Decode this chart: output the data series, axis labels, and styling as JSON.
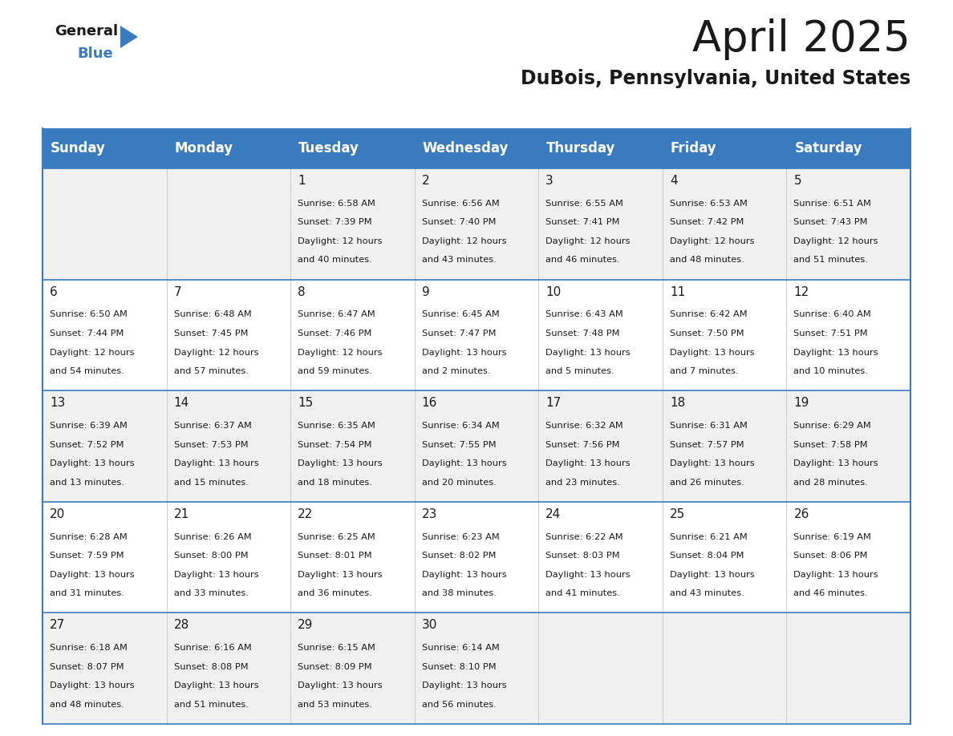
{
  "title": "April 2025",
  "subtitle": "DuBois, Pennsylvania, United States",
  "header_color": "#3a7bbf",
  "header_text_color": "#ffffff",
  "bg_color": "#ffffff",
  "row_odd_color": "#f0f0f0",
  "row_even_color": "#ffffff",
  "border_color": "#3a7bbf",
  "sep_color": "#cccccc",
  "day_headers": [
    "Sunday",
    "Monday",
    "Tuesday",
    "Wednesday",
    "Thursday",
    "Friday",
    "Saturday"
  ],
  "title_fontsize": 38,
  "subtitle_fontsize": 17,
  "header_fontsize": 12,
  "cell_fontsize": 8.2,
  "day_num_fontsize": 11,
  "logo_general_color": "#1a1a1a",
  "logo_blue_color": "#3a7bbf",
  "logo_triangle_color": "#3a7bbf",
  "days": [
    {
      "date": 1,
      "col": 2,
      "row": 0,
      "sunrise": "6:58 AM",
      "sunset": "7:39 PM",
      "daylight": "12 hours",
      "daylight2": "and 40 minutes."
    },
    {
      "date": 2,
      "col": 3,
      "row": 0,
      "sunrise": "6:56 AM",
      "sunset": "7:40 PM",
      "daylight": "12 hours",
      "daylight2": "and 43 minutes."
    },
    {
      "date": 3,
      "col": 4,
      "row": 0,
      "sunrise": "6:55 AM",
      "sunset": "7:41 PM",
      "daylight": "12 hours",
      "daylight2": "and 46 minutes."
    },
    {
      "date": 4,
      "col": 5,
      "row": 0,
      "sunrise": "6:53 AM",
      "sunset": "7:42 PM",
      "daylight": "12 hours",
      "daylight2": "and 48 minutes."
    },
    {
      "date": 5,
      "col": 6,
      "row": 0,
      "sunrise": "6:51 AM",
      "sunset": "7:43 PM",
      "daylight": "12 hours",
      "daylight2": "and 51 minutes."
    },
    {
      "date": 6,
      "col": 0,
      "row": 1,
      "sunrise": "6:50 AM",
      "sunset": "7:44 PM",
      "daylight": "12 hours",
      "daylight2": "and 54 minutes."
    },
    {
      "date": 7,
      "col": 1,
      "row": 1,
      "sunrise": "6:48 AM",
      "sunset": "7:45 PM",
      "daylight": "12 hours",
      "daylight2": "and 57 minutes."
    },
    {
      "date": 8,
      "col": 2,
      "row": 1,
      "sunrise": "6:47 AM",
      "sunset": "7:46 PM",
      "daylight": "12 hours",
      "daylight2": "and 59 minutes."
    },
    {
      "date": 9,
      "col": 3,
      "row": 1,
      "sunrise": "6:45 AM",
      "sunset": "7:47 PM",
      "daylight": "13 hours",
      "daylight2": "and 2 minutes."
    },
    {
      "date": 10,
      "col": 4,
      "row": 1,
      "sunrise": "6:43 AM",
      "sunset": "7:48 PM",
      "daylight": "13 hours",
      "daylight2": "and 5 minutes."
    },
    {
      "date": 11,
      "col": 5,
      "row": 1,
      "sunrise": "6:42 AM",
      "sunset": "7:50 PM",
      "daylight": "13 hours",
      "daylight2": "and 7 minutes."
    },
    {
      "date": 12,
      "col": 6,
      "row": 1,
      "sunrise": "6:40 AM",
      "sunset": "7:51 PM",
      "daylight": "13 hours",
      "daylight2": "and 10 minutes."
    },
    {
      "date": 13,
      "col": 0,
      "row": 2,
      "sunrise": "6:39 AM",
      "sunset": "7:52 PM",
      "daylight": "13 hours",
      "daylight2": "and 13 minutes."
    },
    {
      "date": 14,
      "col": 1,
      "row": 2,
      "sunrise": "6:37 AM",
      "sunset": "7:53 PM",
      "daylight": "13 hours",
      "daylight2": "and 15 minutes."
    },
    {
      "date": 15,
      "col": 2,
      "row": 2,
      "sunrise": "6:35 AM",
      "sunset": "7:54 PM",
      "daylight": "13 hours",
      "daylight2": "and 18 minutes."
    },
    {
      "date": 16,
      "col": 3,
      "row": 2,
      "sunrise": "6:34 AM",
      "sunset": "7:55 PM",
      "daylight": "13 hours",
      "daylight2": "and 20 minutes."
    },
    {
      "date": 17,
      "col": 4,
      "row": 2,
      "sunrise": "6:32 AM",
      "sunset": "7:56 PM",
      "daylight": "13 hours",
      "daylight2": "and 23 minutes."
    },
    {
      "date": 18,
      "col": 5,
      "row": 2,
      "sunrise": "6:31 AM",
      "sunset": "7:57 PM",
      "daylight": "13 hours",
      "daylight2": "and 26 minutes."
    },
    {
      "date": 19,
      "col": 6,
      "row": 2,
      "sunrise": "6:29 AM",
      "sunset": "7:58 PM",
      "daylight": "13 hours",
      "daylight2": "and 28 minutes."
    },
    {
      "date": 20,
      "col": 0,
      "row": 3,
      "sunrise": "6:28 AM",
      "sunset": "7:59 PM",
      "daylight": "13 hours",
      "daylight2": "and 31 minutes."
    },
    {
      "date": 21,
      "col": 1,
      "row": 3,
      "sunrise": "6:26 AM",
      "sunset": "8:00 PM",
      "daylight": "13 hours",
      "daylight2": "and 33 minutes."
    },
    {
      "date": 22,
      "col": 2,
      "row": 3,
      "sunrise": "6:25 AM",
      "sunset": "8:01 PM",
      "daylight": "13 hours",
      "daylight2": "and 36 minutes."
    },
    {
      "date": 23,
      "col": 3,
      "row": 3,
      "sunrise": "6:23 AM",
      "sunset": "8:02 PM",
      "daylight": "13 hours",
      "daylight2": "and 38 minutes."
    },
    {
      "date": 24,
      "col": 4,
      "row": 3,
      "sunrise": "6:22 AM",
      "sunset": "8:03 PM",
      "daylight": "13 hours",
      "daylight2": "and 41 minutes."
    },
    {
      "date": 25,
      "col": 5,
      "row": 3,
      "sunrise": "6:21 AM",
      "sunset": "8:04 PM",
      "daylight": "13 hours",
      "daylight2": "and 43 minutes."
    },
    {
      "date": 26,
      "col": 6,
      "row": 3,
      "sunrise": "6:19 AM",
      "sunset": "8:06 PM",
      "daylight": "13 hours",
      "daylight2": "and 46 minutes."
    },
    {
      "date": 27,
      "col": 0,
      "row": 4,
      "sunrise": "6:18 AM",
      "sunset": "8:07 PM",
      "daylight": "13 hours",
      "daylight2": "and 48 minutes."
    },
    {
      "date": 28,
      "col": 1,
      "row": 4,
      "sunrise": "6:16 AM",
      "sunset": "8:08 PM",
      "daylight": "13 hours",
      "daylight2": "and 51 minutes."
    },
    {
      "date": 29,
      "col": 2,
      "row": 4,
      "sunrise": "6:15 AM",
      "sunset": "8:09 PM",
      "daylight": "13 hours",
      "daylight2": "and 53 minutes."
    },
    {
      "date": 30,
      "col": 3,
      "row": 4,
      "sunrise": "6:14 AM",
      "sunset": "8:10 PM",
      "daylight": "13 hours",
      "daylight2": "and 56 minutes."
    }
  ]
}
